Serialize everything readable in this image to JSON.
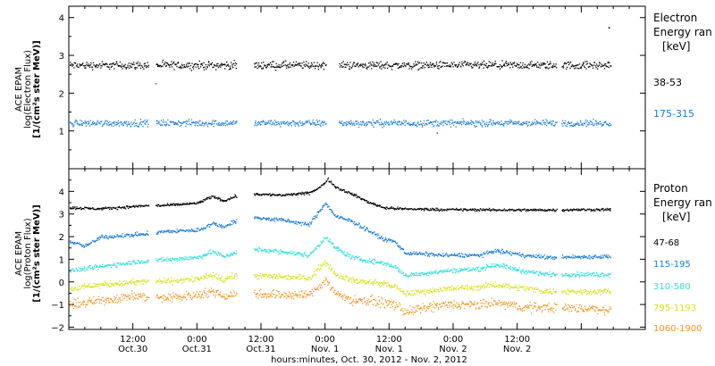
{
  "chart_data": [
    {
      "type": "scatter",
      "panel": "electron",
      "ylabel_lines": [
        "ACE EPAM",
        "log(Electron Flux)",
        "[1/(cm²s ster MeV)]"
      ],
      "ylim": [
        0.0,
        4.3
      ],
      "yticks": [
        1,
        2,
        3,
        4
      ],
      "legend_title": [
        "Electron",
        "Energy ran",
        "[keV]"
      ],
      "gaps": [
        [
          14.9,
          16.2
        ],
        [
          31.4,
          34.6
        ],
        [
          48.1,
          50.5
        ],
        [
          91.3,
          92.2
        ]
      ],
      "series": [
        {
          "name": "38-53",
          "color": "#000000",
          "level": 2.75,
          "noise": 0.07,
          "x_range": [
            0,
            101.5
          ]
        },
        {
          "name": "175-315",
          "color": "#1c7bd6",
          "level": 1.22,
          "noise": 0.06,
          "x_range": [
            0,
            101.5
          ]
        }
      ],
      "outliers": [
        {
          "series": "38-53",
          "x": 101.1,
          "y": 3.75
        },
        {
          "series": "175-315",
          "x": 16.2,
          "y": 2.27
        },
        {
          "series": "175-315",
          "x": 93.9,
          "y": 0.05
        },
        {
          "series": "175-315",
          "x": 68.9,
          "y": 0.96
        }
      ]
    },
    {
      "type": "scatter",
      "panel": "proton",
      "ylabel_lines": [
        "ACE EPAM",
        "log(Proton Flux)",
        "[1/(cm²s ster MeV)]"
      ],
      "ylim": [
        -2.1,
        5.0
      ],
      "yticks": [
        -2,
        -1,
        0,
        1,
        2,
        3,
        4
      ],
      "legend_title": [
        "Proton",
        "Energy ran",
        "[keV]"
      ],
      "gaps": [
        [
          14.9,
          16.2
        ],
        [
          31.4,
          34.6
        ],
        [
          91.3,
          92.2
        ]
      ],
      "series": [
        {
          "name": "47-68",
          "color": "#000000",
          "noise": 0.04,
          "profile": [
            [
              0,
              3.3
            ],
            [
              6,
              3.25
            ],
            [
              12,
              3.35
            ],
            [
              15,
              3.4
            ],
            [
              18,
              3.4
            ],
            [
              24,
              3.5
            ],
            [
              27,
              3.8
            ],
            [
              29,
              3.6
            ],
            [
              31,
              3.8
            ],
            [
              35,
              3.9
            ],
            [
              40,
              3.85
            ],
            [
              45,
              3.95
            ],
            [
              47,
              4.2
            ],
            [
              48.5,
              4.55
            ],
            [
              50,
              4.2
            ],
            [
              53,
              3.9
            ],
            [
              56,
              3.55
            ],
            [
              59,
              3.3
            ],
            [
              62,
              3.25
            ],
            [
              70,
              3.22
            ],
            [
              80,
              3.2
            ],
            [
              90,
              3.2
            ],
            [
              101.5,
              3.22
            ]
          ]
        },
        {
          "name": "115-195",
          "color": "#1c7bd6",
          "noise": 0.06,
          "profile": [
            [
              0,
              1.8
            ],
            [
              3,
              1.6
            ],
            [
              6,
              2.0
            ],
            [
              12,
              2.1
            ],
            [
              15,
              2.15
            ],
            [
              18,
              2.25
            ],
            [
              24,
              2.3
            ],
            [
              27,
              2.6
            ],
            [
              29,
              2.45
            ],
            [
              31,
              2.7
            ],
            [
              35,
              2.85
            ],
            [
              40,
              2.75
            ],
            [
              45,
              2.55
            ],
            [
              48,
              3.5
            ],
            [
              50,
              2.9
            ],
            [
              53,
              2.7
            ],
            [
              56,
              2.3
            ],
            [
              59,
              1.9
            ],
            [
              61,
              1.8
            ],
            [
              63,
              1.3
            ],
            [
              70,
              1.2
            ],
            [
              77,
              1.2
            ],
            [
              80,
              1.4
            ],
            [
              85,
              1.2
            ],
            [
              90,
              1.1
            ],
            [
              101.5,
              1.15
            ]
          ]
        },
        {
          "name": "310-580",
          "color": "#2de0d8",
          "noise": 0.07,
          "profile": [
            [
              0,
              0.5
            ],
            [
              6,
              0.7
            ],
            [
              12,
              0.9
            ],
            [
              15,
              0.95
            ],
            [
              18,
              1.0
            ],
            [
              24,
              1.1
            ],
            [
              27,
              1.35
            ],
            [
              29,
              1.15
            ],
            [
              31,
              1.3
            ],
            [
              35,
              1.45
            ],
            [
              40,
              1.35
            ],
            [
              45,
              1.2
            ],
            [
              48,
              2.0
            ],
            [
              50,
              1.5
            ],
            [
              53,
              1.1
            ],
            [
              56,
              0.95
            ],
            [
              59,
              0.85
            ],
            [
              61,
              0.7
            ],
            [
              63,
              0.3
            ],
            [
              70,
              0.5
            ],
            [
              77,
              0.6
            ],
            [
              80,
              0.8
            ],
            [
              85,
              0.5
            ],
            [
              90,
              0.35
            ],
            [
              101.5,
              0.35
            ]
          ]
        },
        {
          "name": "795-1193",
          "color": "#d6e21a",
          "noise": 0.09,
          "profile": [
            [
              0,
              -0.3
            ],
            [
              6,
              -0.1
            ],
            [
              12,
              0.0
            ],
            [
              15,
              0.05
            ],
            [
              18,
              0.05
            ],
            [
              24,
              0.15
            ],
            [
              27,
              0.3
            ],
            [
              29,
              0.1
            ],
            [
              31,
              0.3
            ],
            [
              35,
              0.3
            ],
            [
              40,
              0.25
            ],
            [
              45,
              0.2
            ],
            [
              48,
              0.9
            ],
            [
              50,
              0.35
            ],
            [
              53,
              0.1
            ],
            [
              56,
              0.0
            ],
            [
              59,
              -0.05
            ],
            [
              61,
              -0.2
            ],
            [
              63,
              -0.5
            ],
            [
              70,
              -0.3
            ],
            [
              77,
              -0.2
            ],
            [
              80,
              -0.1
            ],
            [
              85,
              -0.25
            ],
            [
              90,
              -0.4
            ],
            [
              101.5,
              -0.4
            ]
          ]
        },
        {
          "name": "1060-1900",
          "color": "#f0931d",
          "noise": 0.14,
          "profile": [
            [
              0,
              -1.0
            ],
            [
              6,
              -0.8
            ],
            [
              12,
              -0.6
            ],
            [
              15,
              -0.65
            ],
            [
              18,
              -0.7
            ],
            [
              24,
              -0.55
            ],
            [
              27,
              -0.4
            ],
            [
              29,
              -0.6
            ],
            [
              31,
              -0.5
            ],
            [
              35,
              -0.5
            ],
            [
              40,
              -0.55
            ],
            [
              45,
              -0.55
            ],
            [
              48,
              0.1
            ],
            [
              50,
              -0.5
            ],
            [
              53,
              -0.8
            ],
            [
              56,
              -0.8
            ],
            [
              59,
              -0.9
            ],
            [
              61,
              -1.0
            ],
            [
              63,
              -1.3
            ],
            [
              70,
              -1.0
            ],
            [
              77,
              -1.0
            ],
            [
              80,
              -0.9
            ],
            [
              85,
              -1.1
            ],
            [
              90,
              -1.1
            ],
            [
              101.5,
              -1.2
            ]
          ]
        }
      ]
    }
  ],
  "x_axis": {
    "range_hours": [
      0,
      108
    ],
    "xlabel": "hours:minutes, Oct. 30, 2012 - Nov.  2, 2012",
    "ticks": [
      {
        "hour": 12,
        "time": "12:00",
        "date": "Oct.30"
      },
      {
        "hour": 24,
        "time": "0:00",
        "date": "Oct.31"
      },
      {
        "hour": 36,
        "time": "12:00",
        "date": "Oct.31"
      },
      {
        "hour": 48,
        "time": "0:00",
        "date": "Nov. 1"
      },
      {
        "hour": 60,
        "time": "12:00",
        "date": "Nov. 1"
      },
      {
        "hour": 72,
        "time": "0:00",
        "date": "Nov. 2"
      },
      {
        "hour": 84,
        "time": "12:00",
        "date": "Nov. 2"
      }
    ]
  }
}
